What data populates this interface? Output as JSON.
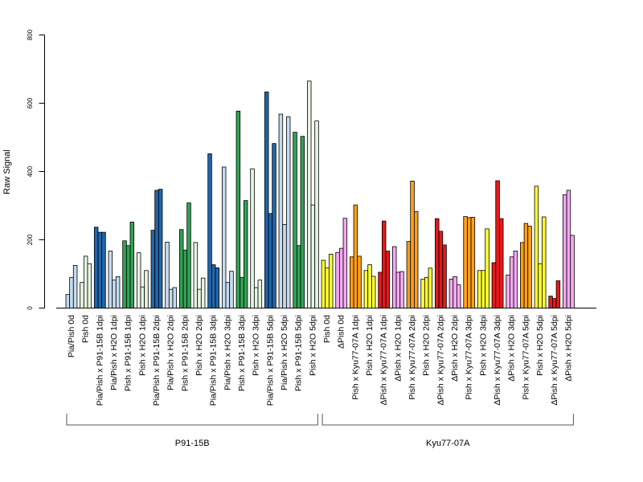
{
  "chart_data": {
    "type": "bar",
    "ylabel": "Raw Signal",
    "ylim": [
      0,
      800
    ],
    "yticks": [
      0,
      200,
      400,
      600,
      800
    ],
    "groups": [
      {
        "name": "Pia/Pish 0d",
        "colors": [
          "#C6DBEF",
          "#C6DBEF",
          "#C6DBEF"
        ],
        "values": [
          40,
          90,
          125
        ]
      },
      {
        "name": "Pish 0d",
        "colors": [
          "#E5F5E0",
          "#E5F5E0",
          "#E5F5E0"
        ],
        "values": [
          75,
          152,
          130
        ]
      },
      {
        "name": "Pia/Pish x P91-15B 1dpi",
        "colors": [
          "#2166AC",
          "#2166AC",
          "#2166AC"
        ],
        "values": [
          237,
          222,
          222
        ]
      },
      {
        "name": "Pia/Pish x H2O 1dpi",
        "colors": [
          "#C6DBEF",
          "#C6DBEF",
          "#C6DBEF"
        ],
        "values": [
          167,
          82,
          92
        ]
      },
      {
        "name": "Pish x P91-15B 1dpi",
        "colors": [
          "#31A354",
          "#31A354",
          "#31A354"
        ],
        "values": [
          197,
          183,
          252
        ]
      },
      {
        "name": "Pish x H2O 1dpi",
        "colors": [
          "#E5F5E0",
          "#E5F5E0",
          "#E5F5E0"
        ],
        "values": [
          162,
          62,
          110
        ]
      },
      {
        "name": "Pia/Pish x P91-15B 2dpi",
        "colors": [
          "#2166AC",
          "#2166AC",
          "#2166AC"
        ],
        "values": [
          228,
          345,
          348
        ]
      },
      {
        "name": "Pia/Pish x H2O 2dpi",
        "colors": [
          "#C6DBEF",
          "#C6DBEF",
          "#C6DBEF"
        ],
        "values": [
          193,
          55,
          60
        ]
      },
      {
        "name": "Pish x P91-15B 2dpi",
        "colors": [
          "#31A354",
          "#31A354",
          "#31A354"
        ],
        "values": [
          230,
          170,
          308
        ]
      },
      {
        "name": "Pish x H2O 2dpi",
        "colors": [
          "#E5F5E0",
          "#E5F5E0",
          "#E5F5E0"
        ],
        "values": [
          192,
          55,
          88
        ]
      },
      {
        "name": "Pia/Pish x P91-15B 3dpi",
        "colors": [
          "#2166AC",
          "#2166AC",
          "#2166AC"
        ],
        "values": [
          452,
          127,
          118
        ]
      },
      {
        "name": "Pia/Pish x H2O 3dpi",
        "colors": [
          "#C6DBEF",
          "#C6DBEF",
          "#C6DBEF"
        ],
        "values": [
          413,
          75,
          108
        ]
      },
      {
        "name": "Pish x P91-15B 3dpi",
        "colors": [
          "#31A354",
          "#31A354",
          "#31A354"
        ],
        "values": [
          577,
          90,
          315
        ]
      },
      {
        "name": "Pish x H2O 3dpi",
        "colors": [
          "#E5F5E0",
          "#E5F5E0",
          "#E5F5E0"
        ],
        "values": [
          408,
          60,
          82
        ]
      },
      {
        "name": "Pia/Pish x P91-15B 5dpi",
        "colors": [
          "#2166AC",
          "#2166AC",
          "#2166AC"
        ],
        "values": [
          633,
          277,
          482
        ]
      },
      {
        "name": "Pia/Pish x H2O 5dpi",
        "colors": [
          "#C6DBEF",
          "#C6DBEF",
          "#C6DBEF"
        ],
        "values": [
          568,
          245,
          560
        ]
      },
      {
        "name": "Pish x P91-15B 5dpi",
        "colors": [
          "#31A354",
          "#31A354",
          "#31A354"
        ],
        "values": [
          515,
          183,
          503
        ]
      },
      {
        "name": "Pish x H2O 5dpi",
        "colors": [
          "#E5F5E0",
          "#E5F5E0",
          "#E5F5E0"
        ],
        "values": [
          665,
          302,
          548
        ]
      },
      {
        "name": "Pish 0d",
        "colors": [
          "#FFFF33",
          "#FFFF33",
          "#FFFF33"
        ],
        "values": [
          140,
          118,
          158
        ]
      },
      {
        "name": "ΔPish 0d",
        "colors": [
          "#F4A9F2",
          "#F4A9F2",
          "#F4A9F2"
        ],
        "values": [
          163,
          175,
          263
        ]
      },
      {
        "name": "Pish x Kyu77-07A 1dpi",
        "colors": [
          "#FF9F1C",
          "#FF9F1C",
          "#FF9F1C"
        ],
        "values": [
          150,
          302,
          152
        ]
      },
      {
        "name": "Pish x H2O 1dpi",
        "colors": [
          "#FFFF33",
          "#FFFF33",
          "#FFFF33"
        ],
        "values": [
          110,
          127,
          93
        ]
      },
      {
        "name": "ΔPish x Kyu77-07A 1dpi",
        "colors": [
          "#E31A1C",
          "#E31A1C",
          "#E31A1C"
        ],
        "values": [
          105,
          255,
          167
        ]
      },
      {
        "name": "ΔPish x H2O 1dpi",
        "colors": [
          "#F4A9F2",
          "#F4A9F2",
          "#F4A9F2"
        ],
        "values": [
          180,
          105,
          107
        ]
      },
      {
        "name": "Pish x Kyu77-07A 2dpi",
        "colors": [
          "#FF9F1C",
          "#FF9F1C",
          "#FF9F1C"
        ],
        "values": [
          195,
          372,
          283
        ]
      },
      {
        "name": "Pish x H2O 2dpi",
        "colors": [
          "#FFFF33",
          "#FFFF33",
          "#FFFF33"
        ],
        "values": [
          85,
          90,
          117
        ]
      },
      {
        "name": "ΔPish x Kyu77-07A 2dpi",
        "colors": [
          "#E31A1C",
          "#E31A1C",
          "#E31A1C"
        ],
        "values": [
          262,
          225,
          185
        ]
      },
      {
        "name": "ΔPish x H2O 2dpi",
        "colors": [
          "#F4A9F2",
          "#F4A9F2",
          "#F4A9F2"
        ],
        "values": [
          85,
          92,
          68
        ]
      },
      {
        "name": "Pish x Kyu77-07A 3dpi",
        "colors": [
          "#FF9F1C",
          "#FF9F1C",
          "#FF9F1C"
        ],
        "values": [
          268,
          265,
          266
        ]
      },
      {
        "name": "Pish x H2O 3dpi",
        "colors": [
          "#FFFF33",
          "#FFFF33",
          "#FFFF33"
        ],
        "values": [
          110,
          110,
          232
        ]
      },
      {
        "name": "ΔPish x Kyu77-07A 3dpi",
        "colors": [
          "#E31A1C",
          "#E31A1C",
          "#E31A1C"
        ],
        "values": [
          133,
          373,
          262
        ]
      },
      {
        "name": "ΔPish x H2O 3dpi",
        "colors": [
          "#F4A9F2",
          "#F4A9F2",
          "#F4A9F2"
        ],
        "values": [
          97,
          150,
          167
        ]
      },
      {
        "name": "Pish x Kyu77-07A 5dpi",
        "colors": [
          "#FF9F1C",
          "#FF9F1C",
          "#FF9F1C"
        ],
        "values": [
          192,
          248,
          240
        ]
      },
      {
        "name": "Pish x H2O 5dpi",
        "colors": [
          "#FFFF33",
          "#FFFF33",
          "#FFFF33"
        ],
        "values": [
          357,
          130,
          267
        ]
      },
      {
        "name": "ΔPish x Kyu77-07A 5dpi",
        "colors": [
          "#E31A1C",
          "#E31A1C",
          "#E31A1C"
        ],
        "values": [
          35,
          28,
          80
        ]
      },
      {
        "name": "ΔPish x H2O 5dpi",
        "colors": [
          "#F4A9F2",
          "#F4A9F2",
          "#F4A9F2"
        ],
        "values": [
          332,
          345,
          213
        ]
      }
    ],
    "brackets": [
      {
        "label": "P91-15B",
        "from_group": 0,
        "to_group": 17
      },
      {
        "label": "Kyu77-07A",
        "from_group": 18,
        "to_group": 35
      }
    ]
  }
}
